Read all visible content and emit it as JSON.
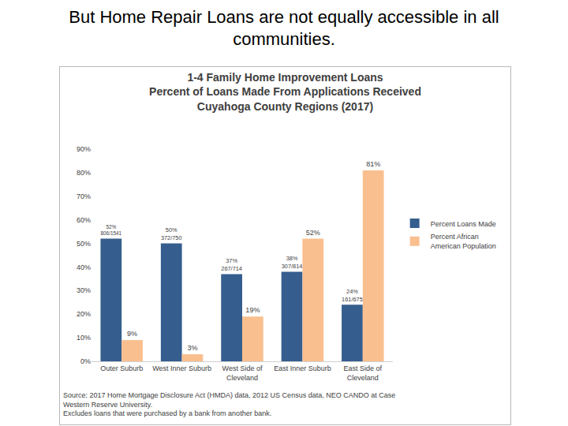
{
  "heading": "But Home Repair Loans are not equally accessible in all communities.",
  "chart_data": {
    "type": "bar",
    "title": "1-4 Family Home Improvement Loans\nPercent of Loans Made From Applications Received\nCuyahoga County Regions (2017)",
    "categories": [
      "Outer Suburb",
      "West Inner Suburb",
      "West Side of\nCleveland",
      "East Inner Suburb",
      "East Side of\nCleveland"
    ],
    "series": [
      {
        "name": "Percent Loans Made",
        "color": "#355e8e",
        "values": [
          52,
          50,
          37,
          38,
          24
        ],
        "value_labels": [
          "52%\n806/1541",
          "50%\n372/750",
          "37%\n267/714",
          "38%\n307/814",
          "24%\n161/675"
        ]
      },
      {
        "name": "Percent African\nAmerican Population",
        "color": "#fabf8f",
        "values": [
          9,
          3,
          19,
          52,
          81
        ],
        "value_labels": [
          "9%",
          "3%",
          "19%",
          "52%",
          "81%"
        ]
      }
    ],
    "ylim": [
      0,
      90
    ],
    "yticks": [
      {
        "value": 0,
        "label": "0%"
      },
      {
        "value": 10,
        "label": "10%"
      },
      {
        "value": 20,
        "label": "20%"
      },
      {
        "value": 30,
        "label": "30%"
      },
      {
        "value": 40,
        "label": "40%"
      },
      {
        "value": 50,
        "label": "50%"
      },
      {
        "value": 60,
        "label": "60%"
      },
      {
        "value": 70,
        "label": "70%"
      },
      {
        "value": 80,
        "label": "80%"
      },
      {
        "value": 90,
        "label": "90%"
      }
    ],
    "grid": false,
    "legend": "right",
    "data_labels": true,
    "annotations": [
      "Source: 2017 Home Mortgage Disclosure Act (HMDA) data, 2012 US Census data, NEO CANDO at Case\nWestern Reserve University.\nExcludes loans that were purchased by a bank from another bank."
    ]
  }
}
